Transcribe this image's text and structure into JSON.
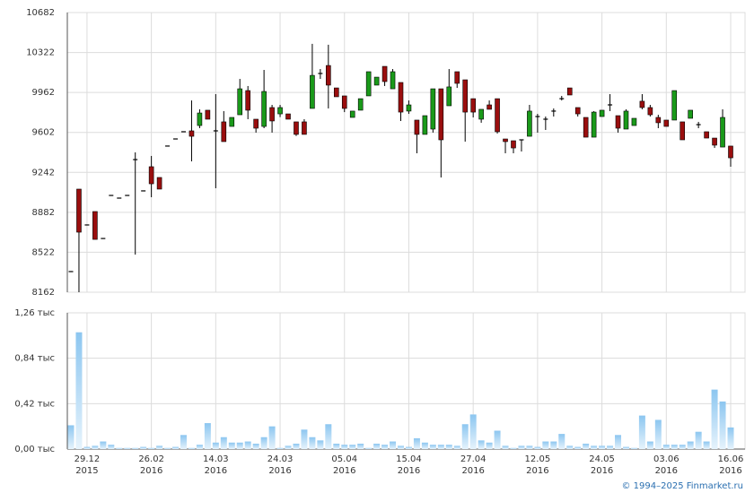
{
  "chart_data": {
    "type": "candlestick",
    "categories": [
      null,
      null,
      [
        "29.12",
        "2015"
      ],
      null,
      null,
      null,
      null,
      null,
      null,
      null,
      [
        "26.02",
        "2016"
      ],
      null,
      null,
      null,
      null,
      null,
      null,
      null,
      [
        "14.03",
        "2016"
      ],
      null,
      null,
      null,
      null,
      null,
      null,
      null,
      [
        "24.03",
        "2016"
      ],
      null,
      null,
      null,
      null,
      null,
      null,
      null,
      [
        "05.04",
        "2016"
      ],
      null,
      null,
      null,
      null,
      null,
      null,
      null,
      [
        "15.04",
        "2016"
      ],
      null,
      null,
      null,
      null,
      null,
      null,
      null,
      [
        "27.04",
        "2016"
      ],
      null,
      null,
      null,
      null,
      null,
      null,
      null,
      [
        "12.05",
        "2016"
      ],
      null,
      null,
      null,
      null,
      null,
      null,
      null,
      [
        "24.05",
        "2016"
      ],
      null,
      null,
      null,
      null,
      null,
      null,
      null,
      [
        "03.06",
        "2016"
      ],
      null,
      null,
      null,
      null,
      null,
      null,
      null,
      [
        "16.06",
        "2016"
      ]
    ],
    "open": [
      8348,
      9091,
      8768,
      8889,
      8646,
      9034,
      9010,
      9034,
      9357,
      9075,
      9293,
      9196,
      9479,
      9543,
      9608,
      9616,
      9664,
      9802,
      9616,
      9697,
      9656,
      9761,
      9979,
      9721,
      9656,
      9826,
      9769,
      9769,
      9697,
      9697,
      9818,
      10133,
      10205,
      10003,
      9931,
      9737,
      9802,
      9931,
      10028,
      10197,
      9995,
      10052,
      9794,
      9713,
      9584,
      9632,
      9995,
      9842,
      10149,
      10076,
      9906,
      9721,
      9850,
      9906,
      9543,
      9527,
      9535,
      9567,
      9745,
      9721,
      9794,
      9906,
      10003,
      9826,
      9737,
      9559,
      9745,
      9850,
      9753,
      9632,
      9664,
      9883,
      9826,
      9737,
      9713,
      9713,
      9697,
      9729,
      9672,
      9608,
      9551,
      9470,
      9479
    ],
    "high": [
      8348,
      9091,
      8768,
      8889,
      8646,
      9034,
      9010,
      9034,
      9422,
      9075,
      9390,
      9196,
      9479,
      9543,
      9608,
      9890,
      9810,
      9802,
      9947,
      9794,
      9737,
      10084,
      10020,
      9721,
      10165,
      9850,
      9850,
      9769,
      9697,
      9721,
      10400,
      10173,
      10392,
      10003,
      9931,
      9794,
      9906,
      10149,
      10100,
      10197,
      10173,
      10052,
      9890,
      9713,
      9753,
      9995,
      9995,
      10173,
      10149,
      10076,
      9906,
      9810,
      9890,
      9906,
      9543,
      9527,
      9535,
      9850,
      9769,
      9745,
      9818,
      9931,
      10003,
      9826,
      9737,
      9794,
      9802,
      9947,
      9753,
      9810,
      9729,
      9947,
      9850,
      9761,
      9713,
      9979,
      9697,
      9802,
      9697,
      9608,
      9551,
      9810,
      9479
    ],
    "low": [
      8348,
      8162,
      8768,
      8638,
      8646,
      9034,
      9010,
      9034,
      8501,
      9075,
      9018,
      9091,
      9479,
      9543,
      9608,
      9341,
      9640,
      9721,
      9099,
      9519,
      9656,
      9761,
      9721,
      9600,
      9640,
      9600,
      9740,
      9721,
      9570,
      9584,
      9818,
      10084,
      9818,
      9923,
      9785,
      9737,
      9802,
      9931,
      10028,
      10020,
      9995,
      9705,
      9769,
      9414,
      9584,
      9600,
      9196,
      9842,
      10003,
      9519,
      9737,
      9689,
      9810,
      9592,
      9414,
      9414,
      9430,
      9567,
      9600,
      9624,
      9745,
      9890,
      9939,
      9745,
      9559,
      9559,
      9745,
      9794,
      9600,
      9632,
      9664,
      9810,
      9745,
      9640,
      9656,
      9713,
      9535,
      9729,
      9640,
      9551,
      9462,
      9470,
      9293
    ],
    "close": [
      8348,
      8703,
      8768,
      8638,
      8646,
      9034,
      9010,
      9034,
      9357,
      9075,
      9139,
      9091,
      9479,
      9543,
      9608,
      9567,
      9777,
      9721,
      9616,
      9519,
      9737,
      9995,
      9802,
      9640,
      9971,
      9705,
      9826,
      9721,
      9584,
      9584,
      10116,
      10133,
      10028,
      9923,
      9818,
      9794,
      9906,
      10149,
      10100,
      10060,
      10149,
      9785,
      9850,
      9584,
      9753,
      9995,
      9535,
      10012,
      10044,
      9785,
      9785,
      9810,
      9810,
      9608,
      9519,
      9462,
      9535,
      9794,
      9745,
      9721,
      9794,
      9906,
      9939,
      9769,
      9559,
      9785,
      9802,
      9850,
      9640,
      9794,
      9729,
      9826,
      9761,
      9689,
      9656,
      9979,
      9535,
      9802,
      9672,
      9551,
      9487,
      9737,
      9373
    ],
    "volume": [
      0.22,
      1.08,
      0.02,
      0.03,
      0.07,
      0.04,
      0.01,
      0.01,
      0.01,
      0.02,
      0.01,
      0.03,
      0.01,
      0.02,
      0.13,
      0.01,
      0.04,
      0.24,
      0.06,
      0.11,
      0.06,
      0.06,
      0.07,
      0.05,
      0.11,
      0.21,
      0.01,
      0.03,
      0.05,
      0.18,
      0.11,
      0.08,
      0.23,
      0.05,
      0.04,
      0.04,
      0.05,
      0.01,
      0.05,
      0.04,
      0.07,
      0.03,
      0.02,
      0.1,
      0.06,
      0.04,
      0.04,
      0.04,
      0.03,
      0.23,
      0.32,
      0.08,
      0.06,
      0.17,
      0.03,
      0.01,
      0.03,
      0.03,
      0.02,
      0.07,
      0.07,
      0.14,
      0.03,
      0.02,
      0.05,
      0.03,
      0.03,
      0.03,
      0.13,
      0.02,
      0.01,
      0.31,
      0.07,
      0.27,
      0.04,
      0.04,
      0.04,
      0.07,
      0.16,
      0.07,
      0.55,
      0.44,
      0.2
    ],
    "up_color": "#1a9a1a",
    "down_color": "#9a0e0e",
    "doji_color": "#000000",
    "volume_color": "#8cc6f0",
    "ylim": [
      8162,
      10682
    ],
    "yticks": [
      8162,
      8522,
      8882,
      9242,
      9602,
      9962,
      10322,
      10682
    ],
    "y2lim": [
      0,
      1.26
    ],
    "y2ticks": [
      {
        "value": 0,
        "label": "0,00 тыс"
      },
      {
        "value": 0.42,
        "label": "0,42 тыс"
      },
      {
        "value": 0.84,
        "label": "0,84 тыс"
      },
      {
        "value": 1.26,
        "label": "1,26 тыс"
      }
    ],
    "grid": true,
    "copyright": "© 1994–2025 Finmarket.ru"
  }
}
